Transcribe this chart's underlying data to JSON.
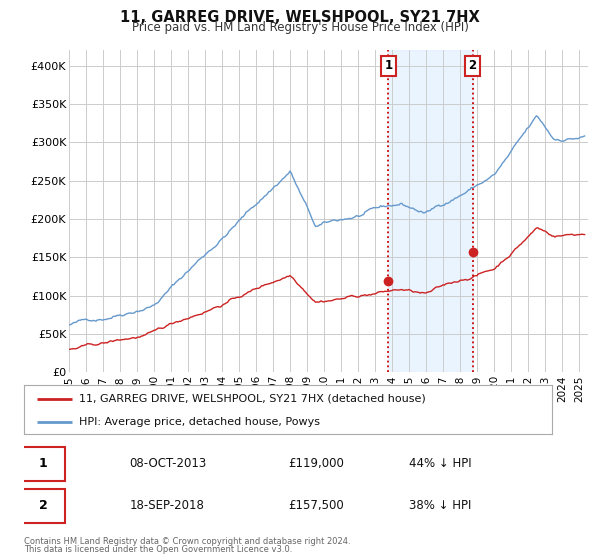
{
  "title": "11, GARREG DRIVE, WELSHPOOL, SY21 7HX",
  "subtitle": "Price paid vs. HM Land Registry's House Price Index (HPI)",
  "ylim": [
    0,
    420000
  ],
  "yticks": [
    0,
    50000,
    100000,
    150000,
    200000,
    250000,
    300000,
    350000,
    400000
  ],
  "ytick_labels": [
    "£0",
    "£50K",
    "£100K",
    "£150K",
    "£200K",
    "£250K",
    "£300K",
    "£350K",
    "£400K"
  ],
  "xlim_start": 1995.0,
  "xlim_end": 2025.5,
  "hpi_color": "#6699cc",
  "price_color": "#cc2222",
  "marker_color": "#cc2222",
  "vline_color": "#cc0000",
  "shade_color": "#ddeeff",
  "transaction1_x": 2013.77,
  "transaction1_y": 119000,
  "transaction2_x": 2018.72,
  "transaction2_y": 157500,
  "transaction1_date": "08-OCT-2013",
  "transaction1_price": "£119,000",
  "transaction1_pct": "44% ↓ HPI",
  "transaction2_date": "18-SEP-2018",
  "transaction2_price": "£157,500",
  "transaction2_pct": "38% ↓ HPI",
  "legend_line1": "11, GARREG DRIVE, WELSHPOOL, SY21 7HX (detached house)",
  "legend_line2": "HPI: Average price, detached house, Powys",
  "footer_line1": "Contains HM Land Registry data © Crown copyright and database right 2024.",
  "footer_line2": "This data is licensed under the Open Government Licence v3.0.",
  "background_color": "#ffffff",
  "grid_color": "#cccccc"
}
